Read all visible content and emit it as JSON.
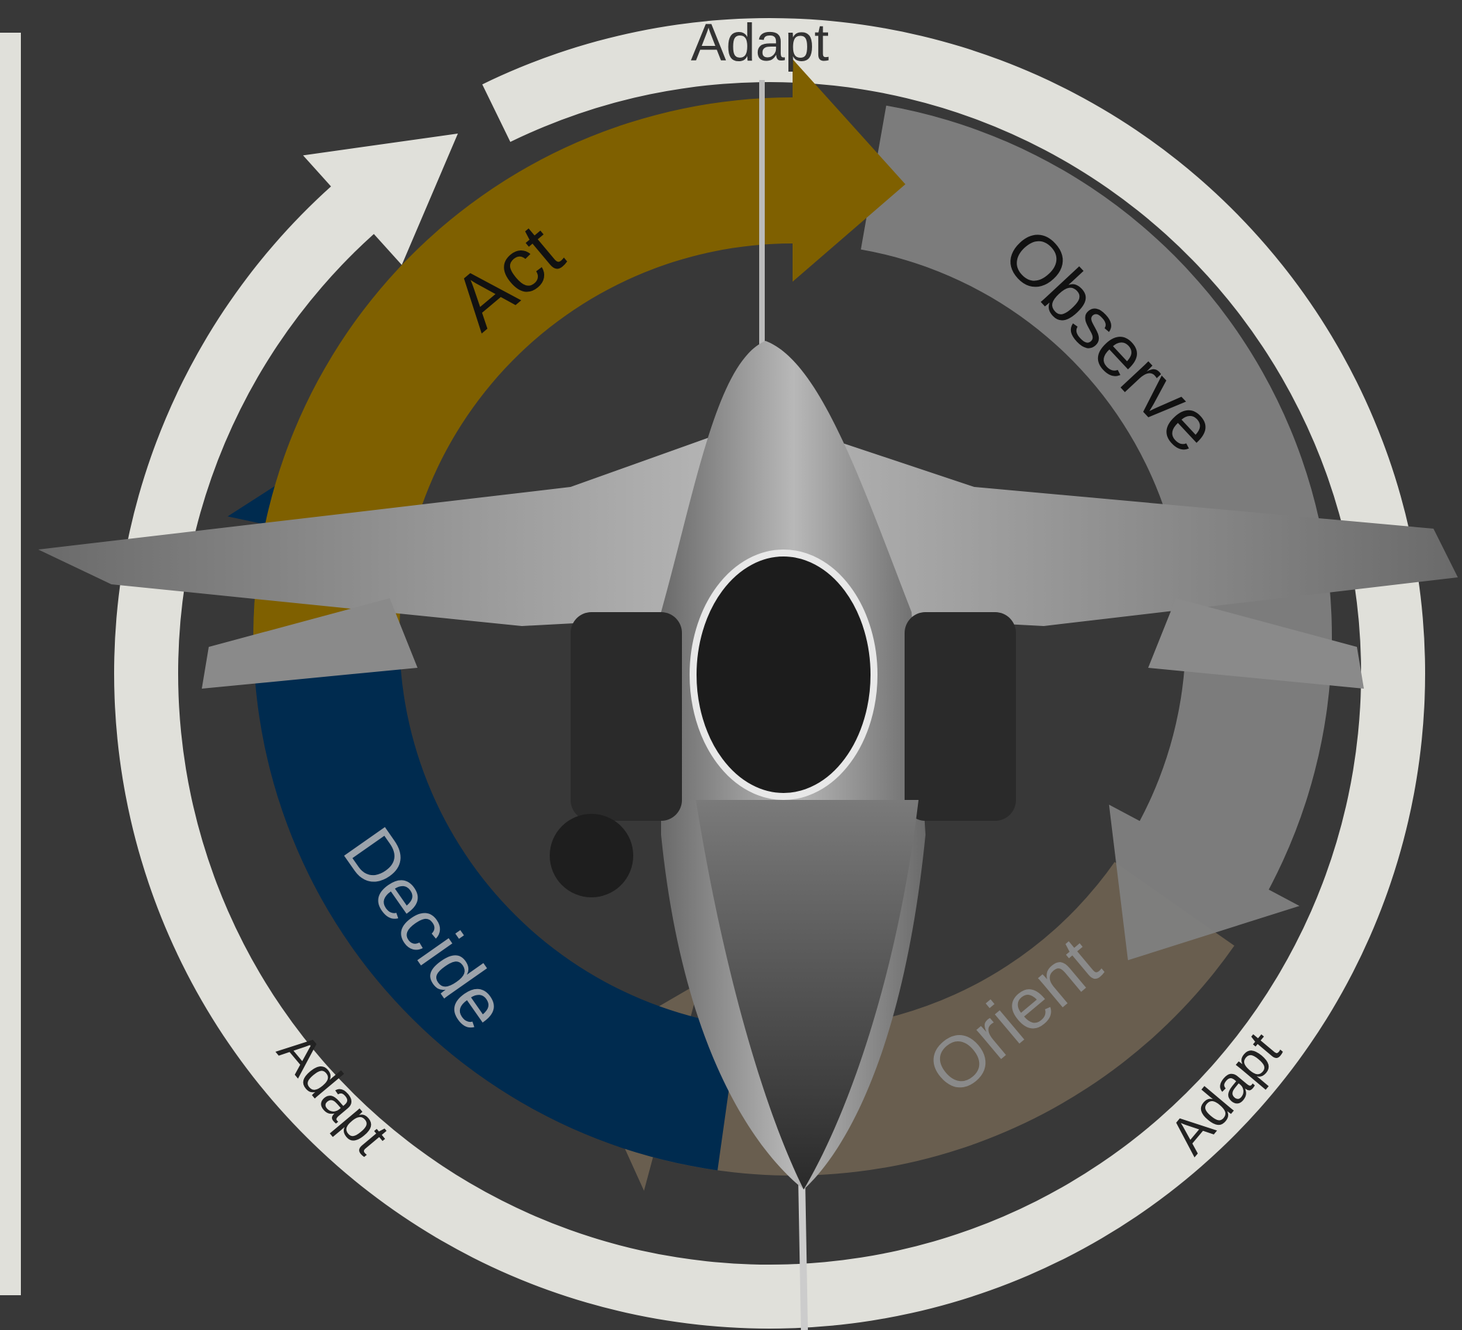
{
  "cycle": [
    "Act",
    "Observe",
    "Orient",
    "Decide"
  ],
  "adapt": [
    "Adapt",
    "Adapt",
    "Adapt"
  ]
}
